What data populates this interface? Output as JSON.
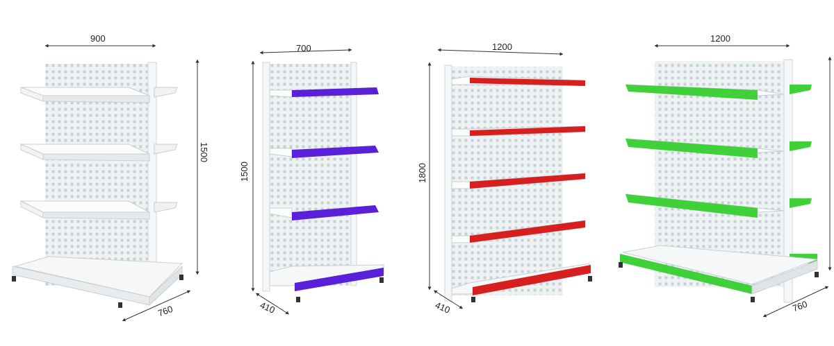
{
  "units": [
    {
      "width": "900",
      "height": "1500",
      "depth": "760",
      "trim_color": "#f3f3f3",
      "trim_name": "white"
    },
    {
      "width": "700",
      "height": "1500",
      "depth": "410",
      "trim_color": "#5a1fd8",
      "trim_name": "blue"
    },
    {
      "width": "1200",
      "height": "1800",
      "depth": "410",
      "trim_color": "#d81f1f",
      "trim_name": "red"
    },
    {
      "width": "1200",
      "height": "",
      "depth": "760",
      "trim_color": "#3fd03a",
      "trim_name": "green"
    }
  ],
  "colors": {
    "frame": "#f4f6f7",
    "panel": "#e9eef0",
    "hole": "#c9d2d6",
    "shelf_top": "#fbfbfb",
    "shelf_edge": "#dde2e4",
    "dim_line": "#333333",
    "foot": "#333333"
  }
}
